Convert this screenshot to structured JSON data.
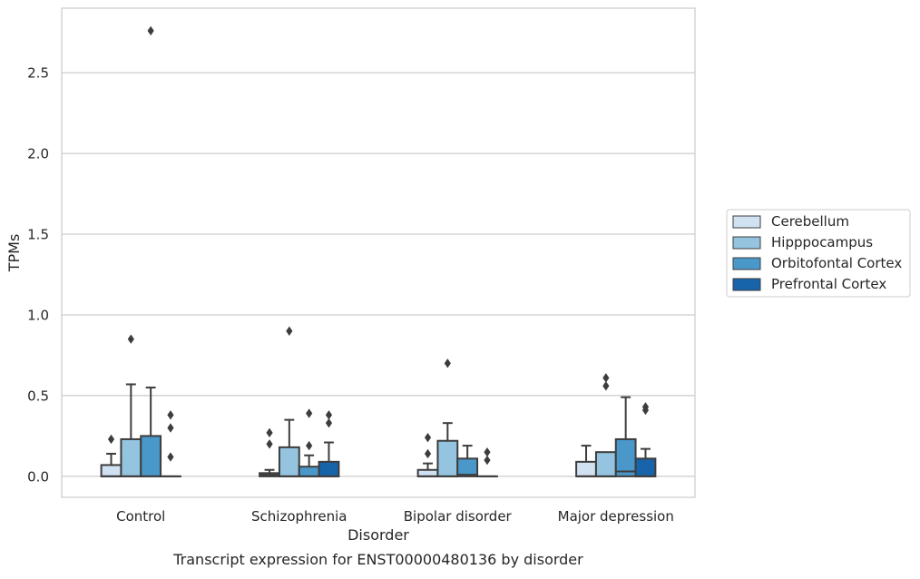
{
  "chart_data": {
    "type": "box",
    "caption": "Transcript expression for ENST00000480136 by disorder",
    "xlabel": "Disorder",
    "ylabel": "TPMs",
    "ylim": [
      -0.13,
      2.9
    ],
    "yticks": [
      0.0,
      0.5,
      1.0,
      1.5,
      2.0,
      2.5
    ],
    "ytick_labels": [
      "0.0",
      "0.5",
      "1.0",
      "1.5",
      "2.0",
      "2.5"
    ],
    "grid": "horizontal",
    "legend_position": "right",
    "categories": [
      "Control",
      "Schizophrenia",
      "Bipolar disorder",
      "Major depression"
    ],
    "series": [
      {
        "name": "Cerebellum",
        "color": "#d0e1f2",
        "boxes": [
          {
            "whisker_low": 0.0,
            "q1": 0.0,
            "median": 0.0,
            "q3": 0.07,
            "whisker_high": 0.14,
            "outliers": [
              0.23
            ]
          },
          {
            "whisker_low": 0.0,
            "q1": 0.0,
            "median": 0.01,
            "q3": 0.02,
            "whisker_high": 0.04,
            "outliers": [
              0.2,
              0.27
            ]
          },
          {
            "whisker_low": 0.0,
            "q1": 0.0,
            "median": 0.0,
            "q3": 0.04,
            "whisker_high": 0.08,
            "outliers": [
              0.14,
              0.24
            ]
          },
          {
            "whisker_low": 0.0,
            "q1": 0.0,
            "median": 0.0,
            "q3": 0.09,
            "whisker_high": 0.19,
            "outliers": []
          }
        ]
      },
      {
        "name": "Hipppocampus",
        "color": "#94c4df",
        "boxes": [
          {
            "whisker_low": 0.0,
            "q1": 0.0,
            "median": 0.0,
            "q3": 0.23,
            "whisker_high": 0.57,
            "outliers": [
              0.85
            ]
          },
          {
            "whisker_low": 0.0,
            "q1": 0.0,
            "median": 0.0,
            "q3": 0.18,
            "whisker_high": 0.35,
            "outliers": [
              0.9
            ]
          },
          {
            "whisker_low": 0.0,
            "q1": 0.0,
            "median": 0.0,
            "q3": 0.22,
            "whisker_high": 0.33,
            "outliers": [
              0.7
            ]
          },
          {
            "whisker_low": 0.0,
            "q1": 0.0,
            "median": 0.0,
            "q3": 0.15,
            "whisker_high": 0.15,
            "outliers": [
              0.56,
              0.61
            ]
          }
        ]
      },
      {
        "name": "Orbitofontal Cortex",
        "color": "#4a98c9",
        "boxes": [
          {
            "whisker_low": 0.0,
            "q1": 0.0,
            "median": 0.0,
            "q3": 0.25,
            "whisker_high": 0.55,
            "outliers": [
              2.76
            ]
          },
          {
            "whisker_low": 0.0,
            "q1": 0.0,
            "median": 0.0,
            "q3": 0.06,
            "whisker_high": 0.13,
            "outliers": [
              0.19,
              0.39
            ]
          },
          {
            "whisker_low": 0.0,
            "q1": 0.0,
            "median": 0.01,
            "q3": 0.11,
            "whisker_high": 0.19,
            "outliers": []
          },
          {
            "whisker_low": 0.0,
            "q1": 0.0,
            "median": 0.03,
            "q3": 0.23,
            "whisker_high": 0.49,
            "outliers": []
          }
        ]
      },
      {
        "name": "Prefrontal Cortex",
        "color": "#1764ab",
        "boxes": [
          {
            "whisker_low": 0.0,
            "q1": 0.0,
            "median": 0.0,
            "q3": 0.0,
            "whisker_high": 0.0,
            "outliers": [
              0.12,
              0.3,
              0.38
            ]
          },
          {
            "whisker_low": 0.0,
            "q1": 0.0,
            "median": 0.0,
            "q3": 0.09,
            "whisker_high": 0.21,
            "outliers": [
              0.33,
              0.38
            ]
          },
          {
            "whisker_low": 0.0,
            "q1": 0.0,
            "median": 0.0,
            "q3": 0.0,
            "whisker_high": 0.0,
            "outliers": [
              0.1,
              0.15
            ]
          },
          {
            "whisker_low": 0.0,
            "q1": 0.0,
            "median": 0.0,
            "q3": 0.11,
            "whisker_high": 0.17,
            "outliers": [
              0.41,
              0.43
            ]
          }
        ]
      }
    ]
  }
}
